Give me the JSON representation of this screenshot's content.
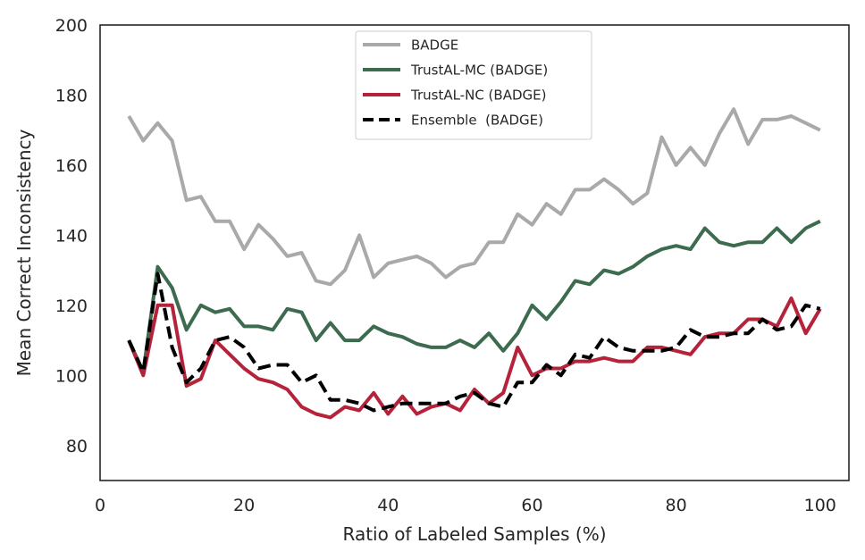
{
  "chart_data": {
    "type": "line",
    "title": "",
    "xlabel": "Ratio of Labeled Samples (%)",
    "ylabel": "Mean Correct Inconsistency",
    "xlim": [
      0,
      104
    ],
    "ylim": [
      70,
      200
    ],
    "xticks": [
      0,
      20,
      40,
      60,
      80,
      100
    ],
    "yticks": [
      80,
      100,
      120,
      140,
      160,
      180,
      200
    ],
    "grid": false,
    "legend_position": "top-center",
    "x": [
      4,
      6,
      8,
      10,
      12,
      14,
      16,
      18,
      20,
      22,
      24,
      26,
      28,
      30,
      32,
      34,
      36,
      38,
      40,
      42,
      44,
      46,
      48,
      50,
      52,
      54,
      56,
      58,
      60,
      62,
      64,
      66,
      68,
      70,
      72,
      74,
      76,
      78,
      80,
      82,
      84,
      86,
      88,
      90,
      92,
      94,
      96,
      98,
      100
    ],
    "series": [
      {
        "name": "BADGE",
        "color": "#a9a9a9",
        "dash": "solid",
        "values": [
          174,
          167,
          172,
          167,
          150,
          151,
          144,
          144,
          136,
          143,
          139,
          134,
          135,
          127,
          126,
          130,
          140,
          128,
          132,
          133,
          134,
          132,
          128,
          131,
          132,
          138,
          138,
          146,
          143,
          149,
          146,
          153,
          153,
          156,
          153,
          149,
          152,
          168,
          160,
          165,
          160,
          169,
          176,
          166,
          173,
          173,
          174,
          172,
          170
        ]
      },
      {
        "name": "TrustAL-MC (BADGE)",
        "color": "#3d6b50",
        "dash": "solid",
        "values": [
          110,
          101,
          131,
          125,
          113,
          120,
          118,
          119,
          114,
          114,
          113,
          119,
          118,
          110,
          115,
          110,
          110,
          114,
          112,
          111,
          109,
          108,
          108,
          110,
          108,
          112,
          107,
          112,
          120,
          116,
          121,
          127,
          126,
          130,
          129,
          131,
          134,
          136,
          137,
          136,
          142,
          138,
          137,
          138,
          138,
          142,
          138,
          142,
          144
        ]
      },
      {
        "name": "TrustAL-NC (BADGE)",
        "color": "#b5233a",
        "dash": "solid",
        "values": [
          110,
          100,
          120,
          120,
          97,
          99,
          110,
          106,
          102,
          99,
          98,
          96,
          91,
          89,
          88,
          91,
          90,
          95,
          89,
          94,
          89,
          91,
          92,
          90,
          96,
          92,
          95,
          108,
          100,
          102,
          102,
          104,
          104,
          105,
          104,
          104,
          108,
          108,
          107,
          106,
          111,
          112,
          112,
          116,
          116,
          114,
          122,
          112,
          119
        ]
      },
      {
        "name": "Ensemble  (BADGE)",
        "color": "#000000",
        "dash": "dashed",
        "values": [
          110,
          101,
          129,
          108,
          98,
          102,
          110,
          111,
          108,
          102,
          103,
          103,
          98,
          100,
          93,
          93,
          92,
          90,
          91,
          92,
          92,
          92,
          92,
          94,
          95,
          92,
          91,
          98,
          98,
          103,
          100,
          106,
          105,
          111,
          108,
          107,
          107,
          107,
          108,
          113,
          111,
          111,
          112,
          112,
          116,
          113,
          114,
          120,
          119
        ]
      }
    ]
  }
}
